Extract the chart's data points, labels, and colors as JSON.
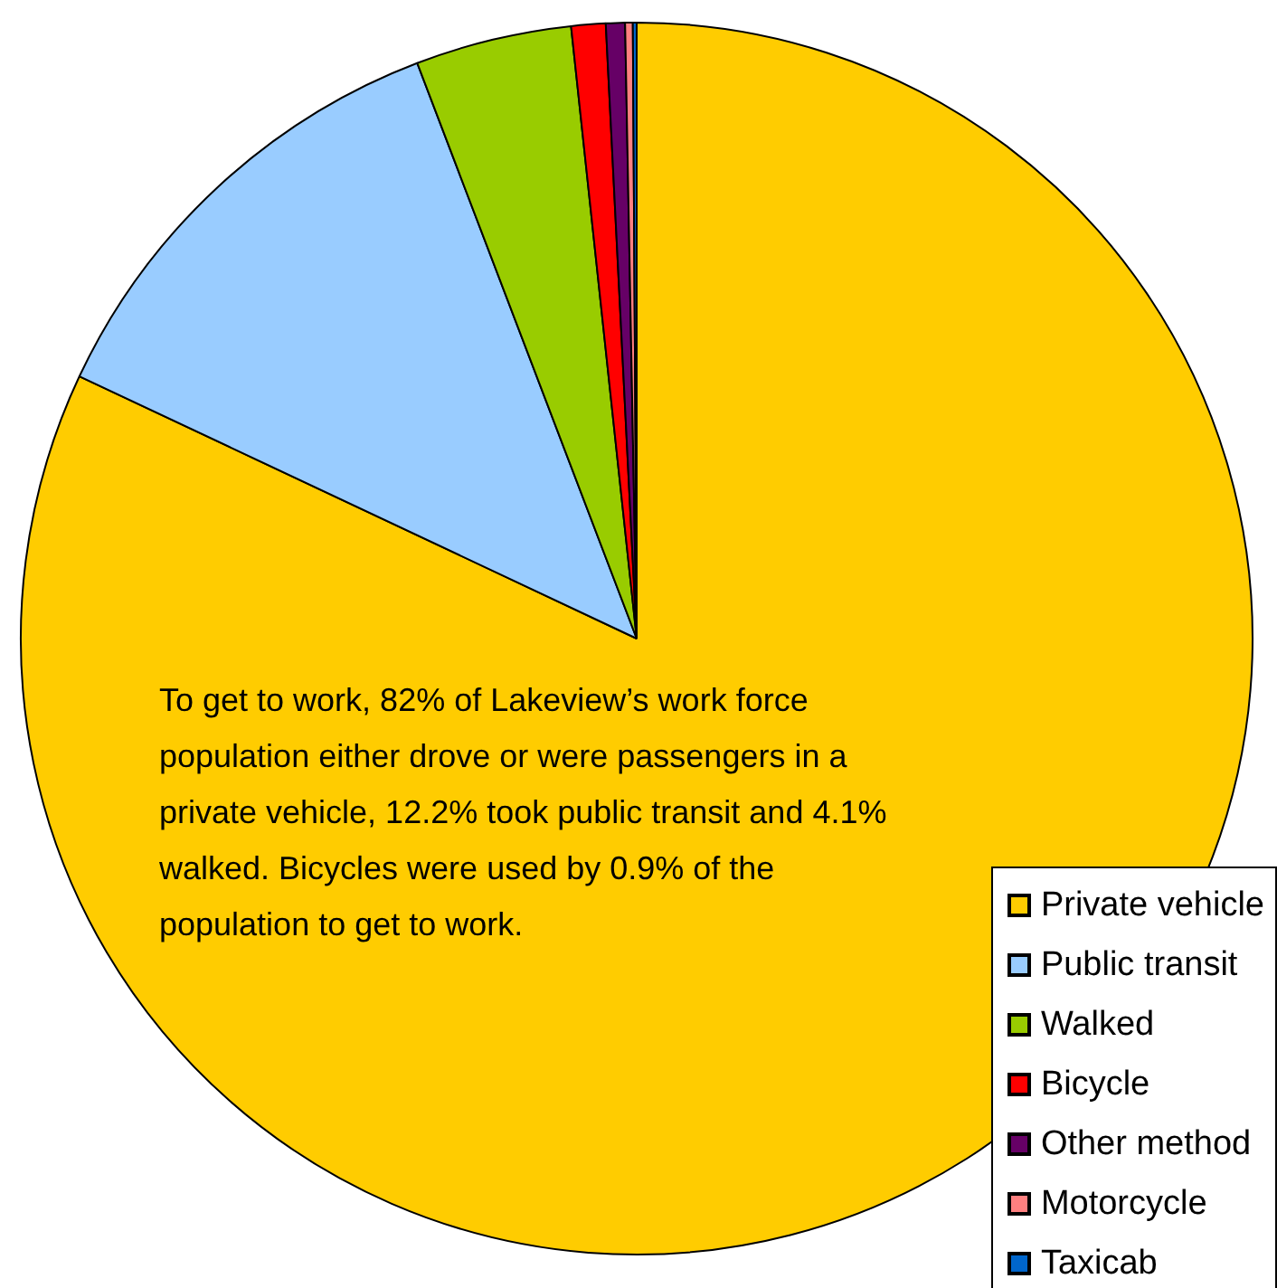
{
  "chart_data": {
    "type": "pie",
    "categories": [
      "Private vehicle",
      "Public transit",
      "Walked",
      "Bicycle",
      "Other method",
      "Motorcycle",
      "Taxicab"
    ],
    "values": [
      82,
      12.2,
      4.1,
      0.9,
      0.5,
      0.2,
      0.1
    ],
    "colors": [
      "#ffcc00",
      "#99ccff",
      "#99cc00",
      "#ff0000",
      "#660066",
      "#ff8080",
      "#0066cc"
    ],
    "legend": "bottom right",
    "annotations": [
      "To get to work, 82% of Lakeview’s work force population either drove or were passengers in a private vehicle, 12.2% took public transit and 4.1% walked. Bicycles were used by 0.9% of the population to get to work."
    ]
  }
}
